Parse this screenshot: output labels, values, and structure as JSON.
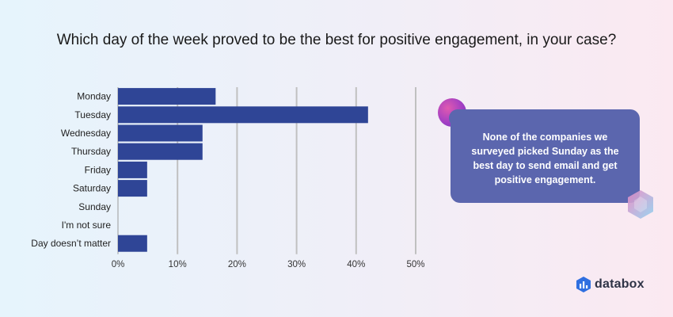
{
  "chart_data": {
    "type": "bar",
    "orientation": "horizontal",
    "title": "Which day of the week proved to be the best for positive engagement, in your case?",
    "categories": [
      "Monday",
      "Tuesday",
      "Wednesday",
      "Thursday",
      "Friday",
      "Saturday",
      "Sunday",
      "I'm not sure",
      "Day doesn’t matter"
    ],
    "values": [
      16.4,
      42,
      14.2,
      14.2,
      4.9,
      4.9,
      0,
      0,
      4.9
    ],
    "xlim": [
      0,
      50
    ],
    "x_ticks": [
      "0%",
      "10%",
      "20%",
      "30%",
      "40%",
      "50%"
    ],
    "grid": true,
    "bar_color": "#2f4596"
  },
  "callout": {
    "text": "None of the companies we surveyed picked Sunday as the best day to send email and get positive engagement."
  },
  "brand": {
    "name": "databox"
  },
  "colors": {
    "callout_bg": "#5b66ae",
    "grid": "#c0c0c0"
  }
}
